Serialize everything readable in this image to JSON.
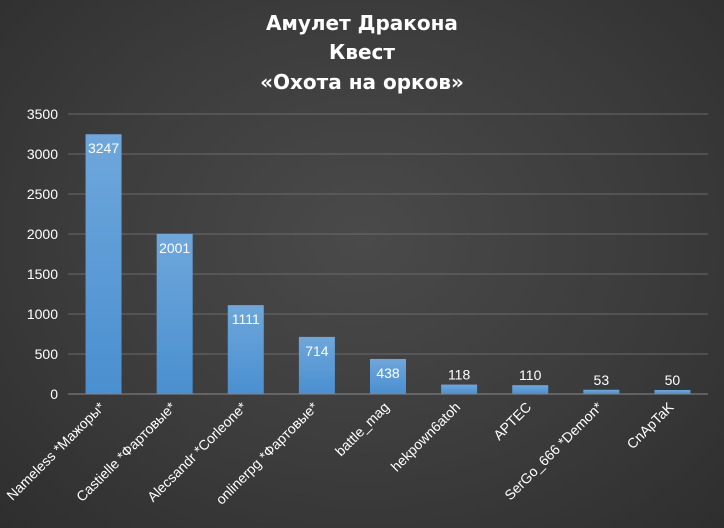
{
  "chart_data": {
    "type": "bar",
    "title": [
      "Амулет Дракона",
      "Квест",
      "«Охота на орков»"
    ],
    "categories": [
      "Nameless *Мажоры*",
      "Castielle *Фартовые*",
      "Alecsandr *Corleone*",
      "onlinerpg *Фартовые*",
      "battle_mag",
      "hekpown6atoh",
      "APTEC",
      "SerGo_666 *Demon*",
      "CnApTaK"
    ],
    "values": [
      3247,
      2001,
      1111,
      714,
      438,
      118,
      110,
      53,
      50
    ],
    "data_labels": [
      "3247",
      "2001",
      "1111",
      "714",
      "438",
      "118",
      "110",
      "53",
      "50"
    ],
    "ylim": [
      0,
      3500
    ],
    "yticks": [
      0,
      500,
      1000,
      1500,
      2000,
      2500,
      3000,
      3500
    ],
    "ytick_labels": [
      "0",
      "500",
      "1000",
      "1500",
      "2000",
      "2500",
      "3000",
      "3500"
    ],
    "grid": true,
    "bar_color": "#5b9bd5",
    "background_color": "#3f3f3f"
  }
}
